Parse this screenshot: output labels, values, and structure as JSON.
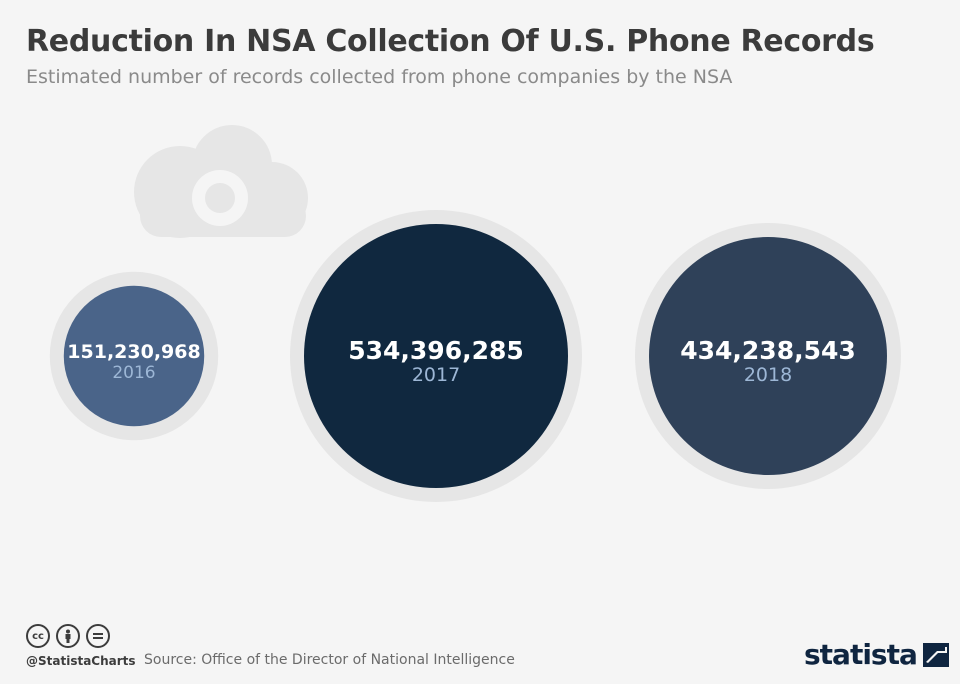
{
  "title": "Reduction In NSA Collection Of U.S. Phone Records",
  "subtitle": "Estimated number of records collected from phone companies by the NSA",
  "chart_data": {
    "type": "bubble",
    "categories": [
      "2016",
      "2017",
      "2018"
    ],
    "values": [
      151230968,
      534396285,
      434238543
    ],
    "value_labels": [
      "151,230,968",
      "534,396,285",
      "434,238,543"
    ],
    "colors": [
      "#4a6489",
      "#10283f",
      "#2f4159"
    ],
    "ring_color": "#e6e6e6",
    "label_color": "#ffffff",
    "year_color": "#9db7d6"
  },
  "decoration": {
    "icon": "cloud-eye-icon",
    "color": "#e6e6e6"
  },
  "footer": {
    "handle": "@StatistaCharts",
    "source": "Source: Office of the Director of National Intelligence",
    "brand": "statista",
    "license_icons": [
      "cc-icon",
      "attribution-icon",
      "no-derivatives-icon"
    ]
  }
}
